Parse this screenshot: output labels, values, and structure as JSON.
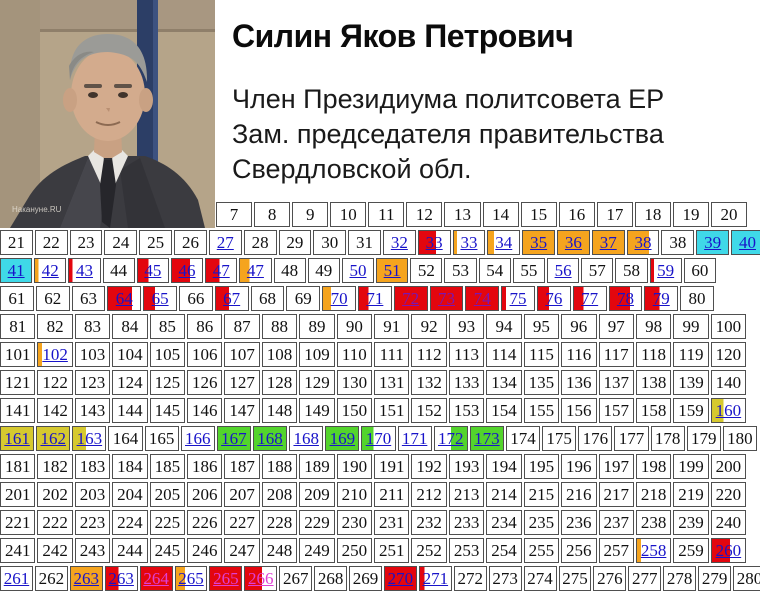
{
  "profile": {
    "name": "Силин Яков Петрович",
    "role_lines": [
      "Член Президиума политсовета ЕР",
      "Зам. председателя правительства",
      "Свердловской обл."
    ],
    "photo_watermark": "Накануне.RU"
  },
  "grid": {
    "colors": {
      "red": "#e3060e",
      "orange": "#f5a41e",
      "cyan": "#3fd9e8",
      "green": "#53d42c",
      "yellow": "#d6c92f",
      "link": "#1813c9",
      "visited": "#7a16b4",
      "magenta": "#df3fd3",
      "plain": "#111111"
    },
    "rows": [
      [
        {
          "n": "7"
        },
        {
          "n": "8"
        },
        {
          "n": "9"
        },
        {
          "n": "10"
        },
        {
          "n": "11"
        },
        {
          "n": "12"
        },
        {
          "n": "13"
        },
        {
          "n": "14"
        },
        {
          "n": "15"
        },
        {
          "n": "16"
        },
        {
          "n": "17"
        },
        {
          "n": "18"
        },
        {
          "n": "19"
        },
        {
          "n": "20"
        }
      ],
      [
        {
          "n": "21"
        },
        {
          "n": "22"
        },
        {
          "n": "23"
        },
        {
          "n": "24"
        },
        {
          "n": "25"
        },
        {
          "n": "26"
        },
        {
          "n": "27",
          "link": true
        },
        {
          "n": "28"
        },
        {
          "n": "29"
        },
        {
          "n": "30"
        },
        {
          "n": "31"
        },
        {
          "n": "32",
          "link": true
        },
        {
          "n": "33",
          "link": true,
          "hl": "red",
          "pct": 55
        },
        {
          "n": "33",
          "link": true,
          "hl": "orange",
          "pct": 10
        },
        {
          "n": "34",
          "link": true,
          "hl": "orange",
          "pct": 20
        },
        {
          "n": "35",
          "link": true,
          "hl": "orange",
          "pct": 100
        },
        {
          "n": "36",
          "link": true,
          "hl": "orange",
          "pct": 100
        },
        {
          "n": "37",
          "link": true,
          "hl": "orange",
          "pct": 100
        },
        {
          "n": "38",
          "link": true,
          "hl": "orange",
          "pct": 70
        },
        {
          "n": "38"
        },
        {
          "n": "39",
          "link": true,
          "hl": "cyan",
          "pct": 100
        },
        {
          "n": "40",
          "link": true,
          "hl": "cyan",
          "pct": 100
        }
      ],
      [
        {
          "n": "41",
          "link": true,
          "hl": "cyan",
          "pct": 100
        },
        {
          "n": "42",
          "link": true,
          "hl": "orange",
          "pct": 12
        },
        {
          "n": "43",
          "link": true,
          "hl": "red",
          "pct": 12
        },
        {
          "n": "44"
        },
        {
          "n": "45",
          "link": true,
          "hl": "red",
          "pct": 35
        },
        {
          "n": "46",
          "link": true,
          "hl": "red",
          "pct": 60
        },
        {
          "n": "47",
          "link": true,
          "hl": "red",
          "pct": 45
        },
        {
          "n": "47",
          "link": true,
          "hl": "orange",
          "pct": 30
        },
        {
          "n": "48"
        },
        {
          "n": "49"
        },
        {
          "n": "50",
          "link": true
        },
        {
          "n": "51",
          "link": true,
          "hl": "orange",
          "pct": 100
        },
        {
          "n": "52"
        },
        {
          "n": "53"
        },
        {
          "n": "54"
        },
        {
          "n": "55"
        },
        {
          "n": "56",
          "link": true
        },
        {
          "n": "57"
        },
        {
          "n": "58"
        },
        {
          "n": "59",
          "link": true,
          "hl": "red",
          "pct": 10
        },
        {
          "n": "60"
        }
      ],
      [
        {
          "n": "61"
        },
        {
          "n": "62"
        },
        {
          "n": "63"
        },
        {
          "n": "64",
          "link": true,
          "hl": "red",
          "pct": 75
        },
        {
          "n": "65",
          "link": true,
          "hl": "red",
          "pct": 35
        },
        {
          "n": "66"
        },
        {
          "n": "67",
          "link": true,
          "hl": "red",
          "pct": 40
        },
        {
          "n": "68"
        },
        {
          "n": "69"
        },
        {
          "n": "70",
          "link": true,
          "hl": "orange",
          "pct": 25
        },
        {
          "n": "71",
          "link": true,
          "hl": "red",
          "pct": 30
        },
        {
          "n": "72",
          "link": true,
          "hl": "red",
          "pct": 100,
          "tc": "visited"
        },
        {
          "n": "73",
          "link": true,
          "hl": "red",
          "pct": 100,
          "tc": "visited"
        },
        {
          "n": "74",
          "link": true,
          "hl": "red",
          "pct": 100,
          "tc": "visited"
        },
        {
          "n": "75",
          "link": true,
          "hl": "red",
          "pct": 12
        },
        {
          "n": "76",
          "link": true,
          "hl": "red",
          "pct": 35
        },
        {
          "n": "77",
          "link": true,
          "hl": "red",
          "pct": 30
        },
        {
          "n": "78",
          "link": true,
          "hl": "red",
          "pct": 65
        },
        {
          "n": "79",
          "link": true,
          "hl": "red",
          "pct": 45
        },
        {
          "n": "80"
        }
      ],
      [
        {
          "n": "81"
        },
        {
          "n": "82"
        },
        {
          "n": "83"
        },
        {
          "n": "84"
        },
        {
          "n": "85"
        },
        {
          "n": "86"
        },
        {
          "n": "87"
        },
        {
          "n": "88"
        },
        {
          "n": "89"
        },
        {
          "n": "90"
        },
        {
          "n": "91"
        },
        {
          "n": "92"
        },
        {
          "n": "93"
        },
        {
          "n": "94"
        },
        {
          "n": "95"
        },
        {
          "n": "96"
        },
        {
          "n": "97"
        },
        {
          "n": "98"
        },
        {
          "n": "99"
        },
        {
          "n": "100"
        }
      ],
      [
        {
          "n": "101"
        },
        {
          "n": "102",
          "link": true,
          "hl": "orange",
          "pct": 12
        },
        {
          "n": "103"
        },
        {
          "n": "104"
        },
        {
          "n": "105"
        },
        {
          "n": "106"
        },
        {
          "n": "107"
        },
        {
          "n": "108"
        },
        {
          "n": "109"
        },
        {
          "n": "110"
        },
        {
          "n": "111"
        },
        {
          "n": "112"
        },
        {
          "n": "113"
        },
        {
          "n": "114"
        },
        {
          "n": "115"
        },
        {
          "n": "116"
        },
        {
          "n": "117"
        },
        {
          "n": "118"
        },
        {
          "n": "119"
        },
        {
          "n": "120"
        }
      ],
      [
        {
          "n": "121"
        },
        {
          "n": "122"
        },
        {
          "n": "123"
        },
        {
          "n": "124"
        },
        {
          "n": "125"
        },
        {
          "n": "126"
        },
        {
          "n": "127"
        },
        {
          "n": "128"
        },
        {
          "n": "129"
        },
        {
          "n": "130"
        },
        {
          "n": "131"
        },
        {
          "n": "132"
        },
        {
          "n": "133"
        },
        {
          "n": "134"
        },
        {
          "n": "135"
        },
        {
          "n": "136"
        },
        {
          "n": "137"
        },
        {
          "n": "138"
        },
        {
          "n": "139"
        },
        {
          "n": "140"
        }
      ],
      [
        {
          "n": "141"
        },
        {
          "n": "142"
        },
        {
          "n": "143"
        },
        {
          "n": "144"
        },
        {
          "n": "145"
        },
        {
          "n": "146"
        },
        {
          "n": "147"
        },
        {
          "n": "148"
        },
        {
          "n": "149"
        },
        {
          "n": "150"
        },
        {
          "n": "151"
        },
        {
          "n": "152"
        },
        {
          "n": "153"
        },
        {
          "n": "154"
        },
        {
          "n": "155"
        },
        {
          "n": "156"
        },
        {
          "n": "157"
        },
        {
          "n": "158"
        },
        {
          "n": "159"
        },
        {
          "n": "160",
          "link": true,
          "hl": "yellow",
          "pct": 35
        }
      ],
      [
        {
          "n": "161",
          "link": true,
          "hl": "yellow",
          "pct": 100
        },
        {
          "n": "162",
          "link": true,
          "hl": "yellow",
          "pct": 100
        },
        {
          "n": "163",
          "link": true,
          "hl": "yellow",
          "pct": 40
        },
        {
          "n": "164"
        },
        {
          "n": "165"
        },
        {
          "n": "166",
          "link": true
        },
        {
          "n": "167",
          "link": true,
          "hl": "green",
          "pct": 100
        },
        {
          "n": "168",
          "link": true,
          "hl": "green",
          "pct": 100
        },
        {
          "n": "168",
          "link": true
        },
        {
          "n": "169",
          "link": true,
          "hl": "green",
          "pct": 100
        },
        {
          "n": "170",
          "link": true,
          "hl": "green",
          "pct": 35
        },
        {
          "n": "171",
          "link": true
        },
        {
          "n": "172",
          "link": true,
          "hl": "green",
          "pct": 50,
          "side": "right"
        },
        {
          "n": "173",
          "link": true,
          "hl": "green",
          "pct": 100
        },
        {
          "n": "174"
        },
        {
          "n": "175"
        },
        {
          "n": "176"
        },
        {
          "n": "177"
        },
        {
          "n": "178"
        },
        {
          "n": "179"
        },
        {
          "n": "180"
        }
      ],
      [
        {
          "n": "181"
        },
        {
          "n": "182"
        },
        {
          "n": "183"
        },
        {
          "n": "184"
        },
        {
          "n": "185"
        },
        {
          "n": "186"
        },
        {
          "n": "187"
        },
        {
          "n": "188"
        },
        {
          "n": "189"
        },
        {
          "n": "190"
        },
        {
          "n": "191"
        },
        {
          "n": "192"
        },
        {
          "n": "193"
        },
        {
          "n": "194"
        },
        {
          "n": "195"
        },
        {
          "n": "196"
        },
        {
          "n": "197"
        },
        {
          "n": "198"
        },
        {
          "n": "199"
        },
        {
          "n": "200"
        }
      ],
      [
        {
          "n": "201"
        },
        {
          "n": "202"
        },
        {
          "n": "203"
        },
        {
          "n": "204"
        },
        {
          "n": "205"
        },
        {
          "n": "206"
        },
        {
          "n": "207"
        },
        {
          "n": "208"
        },
        {
          "n": "209"
        },
        {
          "n": "210"
        },
        {
          "n": "211"
        },
        {
          "n": "212"
        },
        {
          "n": "213"
        },
        {
          "n": "214"
        },
        {
          "n": "215"
        },
        {
          "n": "216"
        },
        {
          "n": "217"
        },
        {
          "n": "218"
        },
        {
          "n": "219"
        },
        {
          "n": "220"
        }
      ],
      [
        {
          "n": "221"
        },
        {
          "n": "222"
        },
        {
          "n": "223"
        },
        {
          "n": "224"
        },
        {
          "n": "225"
        },
        {
          "n": "226"
        },
        {
          "n": "227"
        },
        {
          "n": "228"
        },
        {
          "n": "229"
        },
        {
          "n": "230"
        },
        {
          "n": "231"
        },
        {
          "n": "232"
        },
        {
          "n": "233"
        },
        {
          "n": "234"
        },
        {
          "n": "235"
        },
        {
          "n": "236"
        },
        {
          "n": "237"
        },
        {
          "n": "238"
        },
        {
          "n": "239"
        },
        {
          "n": "240"
        }
      ],
      [
        {
          "n": "241"
        },
        {
          "n": "242"
        },
        {
          "n": "243"
        },
        {
          "n": "244"
        },
        {
          "n": "245"
        },
        {
          "n": "246"
        },
        {
          "n": "247"
        },
        {
          "n": "248"
        },
        {
          "n": "249"
        },
        {
          "n": "250"
        },
        {
          "n": "251"
        },
        {
          "n": "252"
        },
        {
          "n": "253"
        },
        {
          "n": "254"
        },
        {
          "n": "255"
        },
        {
          "n": "256"
        },
        {
          "n": "257"
        },
        {
          "n": "258",
          "link": true,
          "hl": "orange",
          "pct": 12
        },
        {
          "n": "259"
        },
        {
          "n": "260",
          "link": true,
          "hl": "red",
          "pct": 55
        }
      ],
      [
        {
          "n": "261",
          "link": true
        },
        {
          "n": "262"
        },
        {
          "n": "263",
          "link": true,
          "hl": "orange",
          "pct": 100
        },
        {
          "n": "263",
          "link": true,
          "hl": "red",
          "pct": 40
        },
        {
          "n": "264",
          "link": true,
          "hl": "red",
          "pct": 100,
          "tc": "magenta"
        },
        {
          "n": "265",
          "link": true,
          "hl": "orange",
          "pct": 30
        },
        {
          "n": "265",
          "link": true,
          "hl": "red",
          "pct": 100,
          "tc": "magenta"
        },
        {
          "n": "266",
          "link": true,
          "hl": "red",
          "pct": 55,
          "tc": "magenta"
        },
        {
          "n": "267"
        },
        {
          "n": "268"
        },
        {
          "n": "269"
        },
        {
          "n": "270",
          "link": true,
          "hl": "red",
          "pct": 100
        },
        {
          "n": "271",
          "link": true,
          "hl": "red",
          "pct": 15
        },
        {
          "n": "272"
        },
        {
          "n": "273"
        },
        {
          "n": "274"
        },
        {
          "n": "275"
        },
        {
          "n": "276"
        },
        {
          "n": "277"
        },
        {
          "n": "278"
        },
        {
          "n": "279"
        },
        {
          "n": "280"
        }
      ]
    ]
  }
}
